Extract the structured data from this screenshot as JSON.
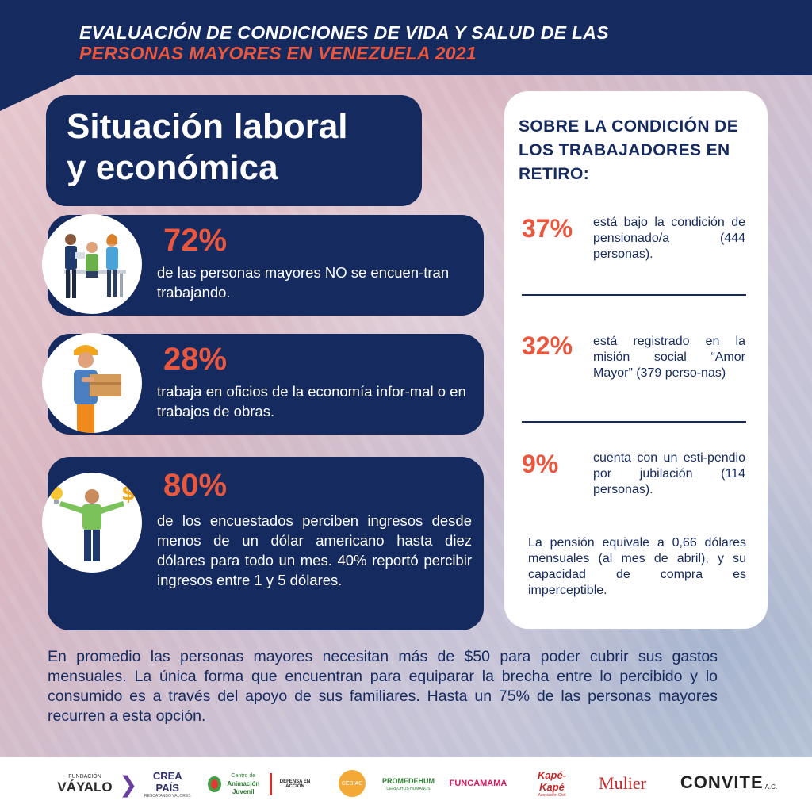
{
  "header": {
    "line1": "EVALUACIÓN DE CONDICIONES DE VIDA  Y SALUD DE LAS",
    "line2": "PERSONAS MAYORES EN VENEZUELA 2021"
  },
  "section": {
    "title_line1": "Situación laboral",
    "title_line2": "y económica"
  },
  "stats": [
    {
      "percent": "72%",
      "icon": "office-workers-icon",
      "text": "de las personas mayores NO se encuen-tran trabajando."
    },
    {
      "percent": "28%",
      "icon": "delivery-worker-icon",
      "text": "trabaja en oficios de la economía infor-mal o en  trabajos de obras."
    },
    {
      "percent": "80%",
      "icon": "person-balancing-money-icon",
      "text": "de los encuestados perciben ingresos desde menos de un dólar americano hasta diez dólares  para todo un mes. 40% reportó percibir ingresos entre 1 y 5 dólares."
    }
  ],
  "retirement": {
    "title": "SOBRE LA CONDICIÓN DE LOS TRABAJADORES EN RETIRO:",
    "items": [
      {
        "percent": "37%",
        "text": "está bajo la condición de pensionado/a (444 personas)."
      },
      {
        "percent": "32%",
        "text": "está registrado en la misión social “Amor Mayor” (379 perso-nas)"
      },
      {
        "percent": "9%",
        "text": "cuenta con un esti-pendio por jubilación (114 personas)."
      }
    ],
    "note": "La pensión equivale a 0,66 dólares mensuales (al mes de abril), y su capacidad de compra es imperceptible."
  },
  "bottom_text": "En promedio las personas mayores necesitan más de $50 para poder cubrir sus gastos mensuales. La única forma que encuentran para equiparar la brecha entre lo percibido y lo consumido es a través del apoyo de sus familiares. Hasta un 75% de las personas mayores recurren a esta opción.",
  "footer": {
    "logos": [
      {
        "name": "VÁYALO",
        "sub": "FUNDACIÓN"
      },
      {
        "name": "CREA PAÍS",
        "sub": "RESCATANDO VALORES"
      },
      {
        "name": "Animación Juvenil",
        "sub": "Centro de"
      },
      {
        "name": "DEFENSA EN ACCIÓN",
        "sub": ""
      },
      {
        "name": "CEDIAC",
        "sub": ""
      },
      {
        "name": "PROMEDEHUM",
        "sub": "DERECHOS HUMANOS"
      },
      {
        "name": "FUNCAMAMA",
        "sub": ""
      },
      {
        "name": "Kapé-Kapé",
        "sub": "Asociación Civil"
      },
      {
        "name": "Mulier",
        "sub": ""
      },
      {
        "name": "CONVITE",
        "sub": "A.C."
      }
    ]
  },
  "colors": {
    "navy": "#152a5f",
    "accent": "#e9573f",
    "white": "#ffffff"
  }
}
